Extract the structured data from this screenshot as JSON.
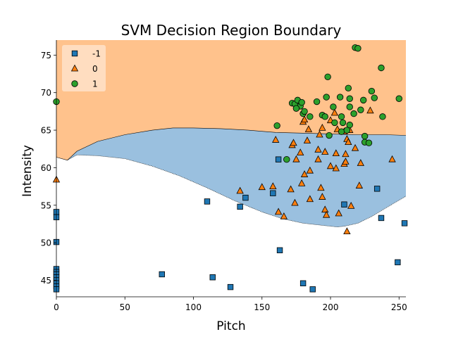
{
  "chart_data": {
    "type": "scatter",
    "title": "SVM Decision Region Boundary",
    "xlabel": "Pitch",
    "ylabel": "Intensity",
    "xlim": [
      0,
      255
    ],
    "ylim": [
      42.8,
      77
    ],
    "xticks": [
      0,
      50,
      100,
      150,
      200,
      250
    ],
    "yticks": [
      45,
      50,
      55,
      60,
      65,
      70,
      75
    ],
    "legend_position": "top-left",
    "colors": {
      "class_-1": "#1f77b4",
      "class_0": "#ff7f0e",
      "class_1": "#2ca02c",
      "region_-1": "#9ac0df",
      "region_0": "#ffc28c"
    },
    "regions": {
      "upper_boundary": [
        [
          0,
          61.4
        ],
        [
          8,
          61.0
        ],
        [
          15,
          62.2
        ],
        [
          30,
          63.5
        ],
        [
          50,
          64.4
        ],
        [
          70,
          65.0
        ],
        [
          85,
          65.3
        ],
        [
          100,
          65.3
        ],
        [
          120,
          65.2
        ],
        [
          140,
          65.0
        ],
        [
          160,
          64.7
        ],
        [
          180,
          64.6
        ],
        [
          200,
          64.5
        ],
        [
          220,
          64.4
        ],
        [
          240,
          64.4
        ],
        [
          255,
          64.3
        ]
      ],
      "lower_boundary": [
        [
          8,
          61.0
        ],
        [
          15,
          61.7
        ],
        [
          30,
          61.6
        ],
        [
          50,
          61.2
        ],
        [
          70,
          60.2
        ],
        [
          90,
          58.9
        ],
        [
          110,
          57.3
        ],
        [
          130,
          55.6
        ],
        [
          150,
          54.1
        ],
        [
          165,
          53.2
        ],
        [
          180,
          52.6
        ],
        [
          195,
          52.3
        ],
        [
          205,
          52.1
        ],
        [
          210,
          52.2
        ],
        [
          220,
          52.6
        ],
        [
          230,
          53.5
        ],
        [
          240,
          54.6
        ],
        [
          255,
          56.2
        ]
      ]
    },
    "series": [
      {
        "name": "-1",
        "marker": "square",
        "points": [
          [
            0,
            54.1
          ],
          [
            0,
            53.4
          ],
          [
            0,
            50.1
          ],
          [
            0,
            46.5
          ],
          [
            0,
            46.1
          ],
          [
            0,
            45.8
          ],
          [
            0,
            45.4
          ],
          [
            0,
            45.0
          ],
          [
            0,
            44.6
          ],
          [
            0,
            44.2
          ],
          [
            0,
            43.8
          ],
          [
            77,
            45.8
          ],
          [
            110,
            55.5
          ],
          [
            114,
            45.4
          ],
          [
            127,
            44.1
          ],
          [
            134,
            54.8
          ],
          [
            138,
            56.0
          ],
          [
            158,
            56.6
          ],
          [
            162,
            61.1
          ],
          [
            163,
            49.0
          ],
          [
            180,
            44.6
          ],
          [
            187,
            43.8
          ],
          [
            210,
            55.1
          ],
          [
            234,
            57.2
          ],
          [
            237,
            53.3
          ],
          [
            249,
            47.4
          ],
          [
            254,
            52.6
          ]
        ]
      },
      {
        "name": "0",
        "marker": "triangle",
        "points": [
          [
            0,
            58.4
          ],
          [
            134,
            56.9
          ],
          [
            150,
            57.4
          ],
          [
            158,
            57.5
          ],
          [
            160,
            63.7
          ],
          [
            162,
            54.1
          ],
          [
            166,
            53.5
          ],
          [
            171,
            57.1
          ],
          [
            172,
            63.0
          ],
          [
            173,
            63.3
          ],
          [
            174,
            55.3
          ],
          [
            175,
            61.1
          ],
          [
            178,
            62.0
          ],
          [
            179,
            57.9
          ],
          [
            180,
            66.1
          ],
          [
            181,
            66.4
          ],
          [
            181,
            59.1
          ],
          [
            183,
            63.6
          ],
          [
            184,
            65.1
          ],
          [
            185,
            55.8
          ],
          [
            185,
            59.6
          ],
          [
            191,
            62.4
          ],
          [
            191,
            61.1
          ],
          [
            192,
            64.4
          ],
          [
            193,
            57.3
          ],
          [
            194,
            56.1
          ],
          [
            194,
            65.3
          ],
          [
            196,
            54.4
          ],
          [
            196,
            62.1
          ],
          [
            197,
            53.7
          ],
          [
            200,
            66.3
          ],
          [
            200,
            60.2
          ],
          [
            203,
            67.3
          ],
          [
            204,
            59.9
          ],
          [
            204,
            61.9
          ],
          [
            205,
            65.1
          ],
          [
            206,
            53.9
          ],
          [
            210,
            60.5
          ],
          [
            210,
            64.8
          ],
          [
            211,
            61.8
          ],
          [
            211,
            60.8
          ],
          [
            212,
            63.8
          ],
          [
            212,
            51.5
          ],
          [
            213,
            63.4
          ],
          [
            214,
            65.0
          ],
          [
            215,
            54.9
          ],
          [
            218,
            62.6
          ],
          [
            221,
            57.6
          ],
          [
            222,
            60.6
          ],
          [
            229,
            67.6
          ],
          [
            245,
            61.1
          ]
        ]
      },
      {
        "name": "1",
        "marker": "circle",
        "points": [
          [
            0,
            68.8
          ],
          [
            161,
            65.6
          ],
          [
            168,
            61.1
          ],
          [
            172,
            68.6
          ],
          [
            174,
            68.5
          ],
          [
            176,
            69.0
          ],
          [
            178,
            68.2
          ],
          [
            179,
            68.7
          ],
          [
            180,
            67.2
          ],
          [
            181,
            67.5
          ],
          [
            175,
            67.9
          ],
          [
            185,
            66.8
          ],
          [
            190,
            68.8
          ],
          [
            197,
            69.4
          ],
          [
            194,
            67.0
          ],
          [
            196,
            66.8
          ],
          [
            198,
            72.1
          ],
          [
            199,
            64.3
          ],
          [
            202,
            68.1
          ],
          [
            203,
            66.0
          ],
          [
            207,
            69.4
          ],
          [
            208,
            66.8
          ],
          [
            208,
            64.8
          ],
          [
            209,
            66.0
          ],
          [
            212,
            65.0
          ],
          [
            213,
            70.6
          ],
          [
            214,
            68.1
          ],
          [
            214,
            69.2
          ],
          [
            214,
            65.7
          ],
          [
            218,
            76.0
          ],
          [
            217,
            67.2
          ],
          [
            220,
            75.9
          ],
          [
            222,
            67.7
          ],
          [
            224,
            69.0
          ],
          [
            225,
            63.4
          ],
          [
            225,
            64.2
          ],
          [
            228,
            63.3
          ],
          [
            230,
            70.2
          ],
          [
            232,
            69.3
          ],
          [
            237,
            73.3
          ],
          [
            238,
            66.8
          ],
          [
            250,
            69.2
          ]
        ]
      }
    ]
  }
}
